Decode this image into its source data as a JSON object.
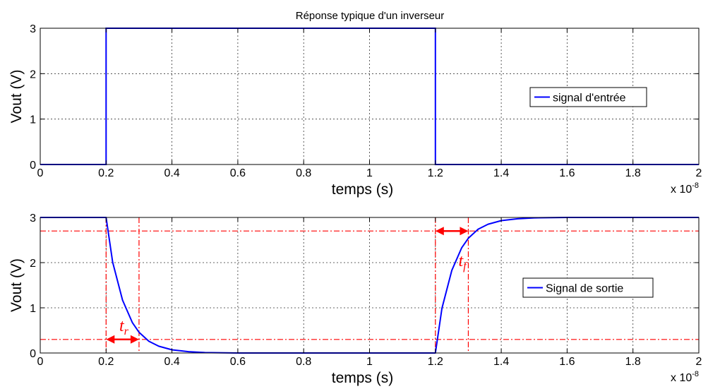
{
  "chart_data": [
    {
      "type": "line",
      "title": "Réponse typique d'un inverseur",
      "xlabel": "temps (s)",
      "ylabel": "Vout (V)",
      "x_multiplier": "x 10",
      "x_multiplier_exp": "-8",
      "xlim": [
        0,
        2
      ],
      "ylim": [
        0,
        3
      ],
      "xticks": [
        "0",
        "0.2",
        "0.4",
        "0.6",
        "0.8",
        "1",
        "1.2",
        "1.4",
        "1.6",
        "1.8",
        "2"
      ],
      "yticks": [
        "0",
        "1",
        "2",
        "3"
      ],
      "grid": true,
      "legend_position": "right-middle",
      "series": [
        {
          "name": "signal d'entrée",
          "color": "#0000ff",
          "x": [
            0,
            0.2,
            0.2,
            1.2,
            1.2,
            2
          ],
          "y": [
            0,
            0,
            3,
            3,
            0,
            0
          ]
        }
      ]
    },
    {
      "type": "line",
      "title": "",
      "xlabel": "temps (s)",
      "ylabel": "Vout (V)",
      "x_multiplier": "x 10",
      "x_multiplier_exp": "-8",
      "xlim": [
        0,
        2
      ],
      "ylim": [
        0,
        3
      ],
      "xticks": [
        "0",
        "0.2",
        "0.4",
        "0.6",
        "0.8",
        "1",
        "1.2",
        "1.4",
        "1.6",
        "1.8",
        "2"
      ],
      "yticks": [
        "0",
        "1",
        "2",
        "3"
      ],
      "grid": true,
      "legend_position": "right-middle",
      "series": [
        {
          "name": "Signal de sortie",
          "color": "#0000ff",
          "x": [
            0,
            0.2,
            0.22,
            0.25,
            0.28,
            0.3,
            0.33,
            0.36,
            0.4,
            0.45,
            0.5,
            0.6,
            0.8,
            1.0,
            1.2,
            1.22,
            1.25,
            1.28,
            1.3,
            1.33,
            1.36,
            1.4,
            1.45,
            1.5,
            1.6,
            2.0
          ],
          "y": [
            3,
            3,
            2.01,
            1.17,
            0.67,
            0.46,
            0.26,
            0.15,
            0.07,
            0.03,
            0.01,
            0,
            0,
            0,
            0,
            0.99,
            1.83,
            2.33,
            2.54,
            2.74,
            2.85,
            2.93,
            2.97,
            2.99,
            3,
            3
          ]
        }
      ],
      "annotations": {
        "color": "#ff0000",
        "levels_y": [
          2.7,
          0.3
        ],
        "markers_x": [
          0.2,
          0.3,
          1.2,
          1.3
        ],
        "tr": {
          "text": "t",
          "sub": "r",
          "x_range": [
            0.2,
            0.3
          ],
          "y": 0.3
        },
        "tf": {
          "text": "t",
          "sub": "f",
          "x_range": [
            1.2,
            1.3
          ],
          "y": 2.7
        }
      }
    }
  ]
}
